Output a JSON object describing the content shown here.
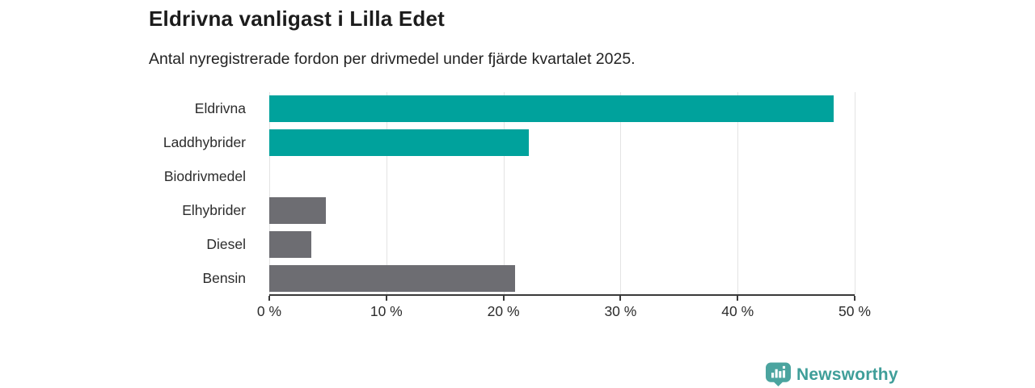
{
  "header": {
    "title": "Eldrivna vanligast i Lilla Edet",
    "subtitle": "Antal nyregistrerade fordon per drivmedel under fjärde kvartalet 2025."
  },
  "chart_data": {
    "type": "bar",
    "orientation": "horizontal",
    "title": "Eldrivna vanligast i Lilla Edet",
    "subtitle": "Antal nyregistrerade fordon per drivmedel under fjärde kvartalet 2025.",
    "categories": [
      "Eldrivna",
      "Laddhybrider",
      "Biodrivmedel",
      "Elhybrider",
      "Diesel",
      "Bensin"
    ],
    "values": [
      48.2,
      22.2,
      0,
      4.8,
      3.6,
      21.0
    ],
    "unit": "%",
    "xlim": [
      0,
      50
    ],
    "x_tick_values": [
      0,
      10,
      20,
      30,
      40,
      50
    ],
    "x_tick_labels": [
      "0 %",
      "10 %",
      "20 %",
      "30 %",
      "40 %",
      "50 %"
    ],
    "bar_colors": [
      "#00a29c",
      "#00a29c",
      "#6d6d72",
      "#6d6d72",
      "#6d6d72",
      "#6d6d72"
    ],
    "grid": "vertical-gridlines-on",
    "legend": "none"
  },
  "colors": {
    "teal_bar": "#00a29c",
    "gray_bar": "#6d6d72",
    "axis": "#3a3a3a",
    "gridline": "#e4e4e4",
    "title_text": "#1c1c1c",
    "label_text": "#2c2c2c",
    "logo_teal": "#4ba49f",
    "logo_text_teal": "#3f9e99"
  },
  "footer": {
    "brand": "Newsworthy",
    "logo_icon": "bar-chart-speech-bubble-icon"
  }
}
